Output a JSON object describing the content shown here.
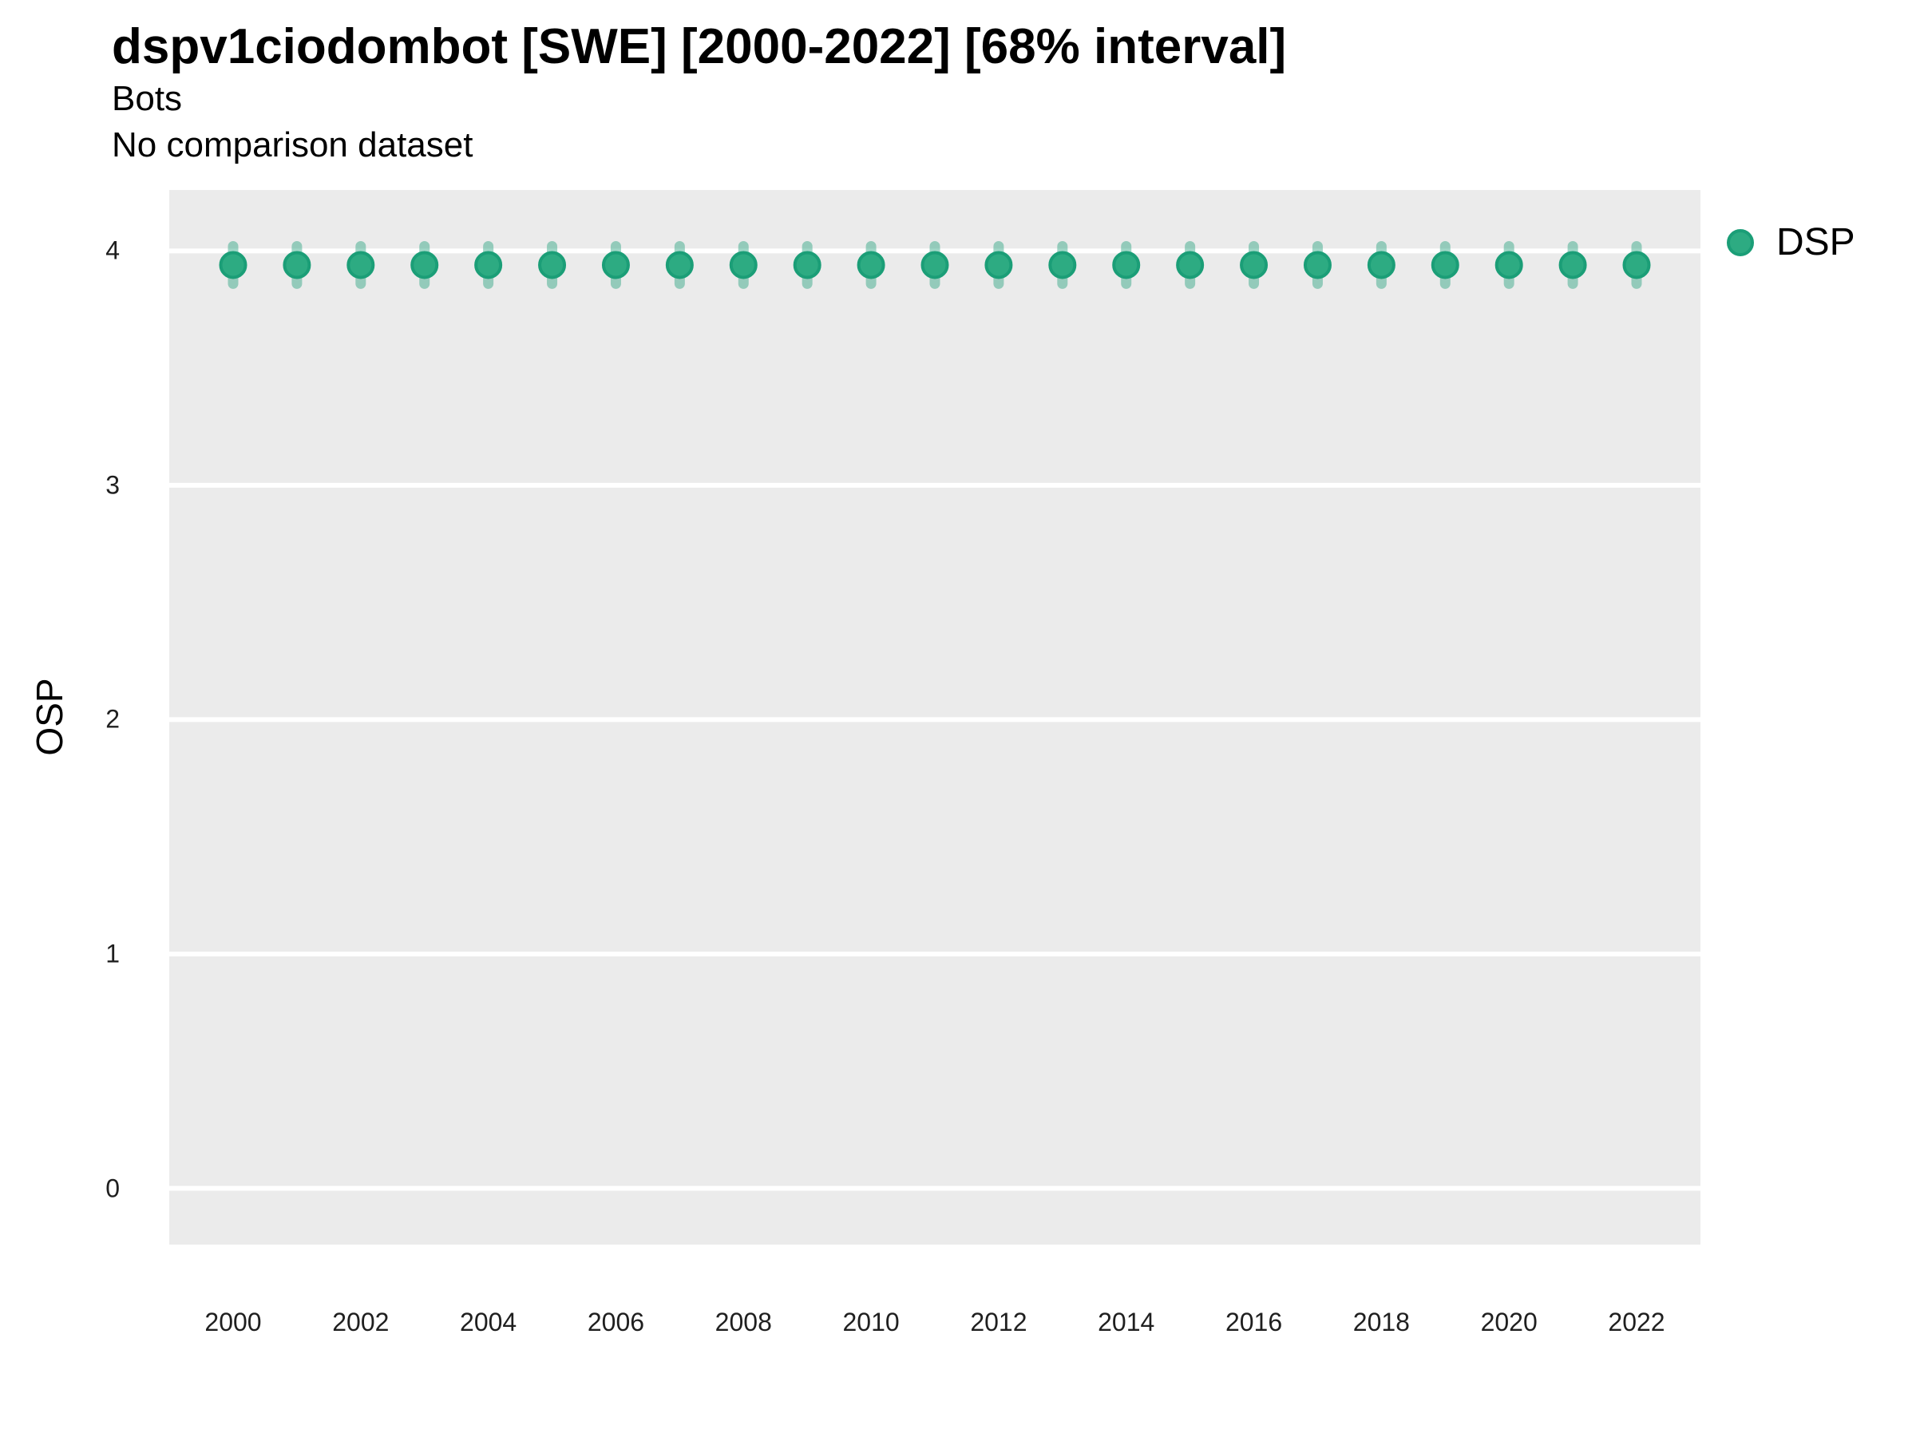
{
  "header": {
    "title": "dspv1ciodombot [SWE] [2000-2022] [68% interval]",
    "subtitle": "Bots",
    "comparison_note": "No comparison dataset"
  },
  "legend": {
    "items": [
      {
        "label": "DSP",
        "fill": "#2dab82",
        "stroke": "#1b9e77"
      }
    ]
  },
  "axes": {
    "y_label": "OSP",
    "y_ticks": [
      4,
      3,
      2,
      1,
      0
    ],
    "x_ticks": [
      2000,
      2002,
      2004,
      2006,
      2008,
      2010,
      2012,
      2014,
      2016,
      2018,
      2020,
      2022
    ]
  },
  "chart_data": {
    "type": "scatter",
    "title": "dspv1ciodombot [SWE] [2000-2022] [68% interval]",
    "subtitle": "Bots",
    "note": "No comparison dataset",
    "xlabel": "",
    "ylabel": "OSP",
    "x": [
      2000,
      2001,
      2002,
      2003,
      2004,
      2005,
      2006,
      2007,
      2008,
      2009,
      2010,
      2011,
      2012,
      2013,
      2014,
      2015,
      2016,
      2017,
      2018,
      2019,
      2020,
      2021,
      2022
    ],
    "series": [
      {
        "name": "DSP",
        "values": [
          3.94,
          3.94,
          3.94,
          3.94,
          3.94,
          3.94,
          3.94,
          3.94,
          3.94,
          3.94,
          3.94,
          3.94,
          3.94,
          3.94,
          3.94,
          3.94,
          3.94,
          3.94,
          3.94,
          3.94,
          3.94,
          3.94,
          3.94
        ],
        "interval_low": [
          3.86,
          3.86,
          3.86,
          3.86,
          3.86,
          3.86,
          3.86,
          3.86,
          3.86,
          3.86,
          3.86,
          3.86,
          3.86,
          3.86,
          3.86,
          3.86,
          3.86,
          3.86,
          3.86,
          3.86,
          3.86,
          3.86,
          3.86
        ],
        "interval_high": [
          4.02,
          4.02,
          4.02,
          4.02,
          4.02,
          4.02,
          4.02,
          4.02,
          4.02,
          4.02,
          4.02,
          4.02,
          4.02,
          4.02,
          4.02,
          4.02,
          4.02,
          4.02,
          4.02,
          4.02,
          4.02,
          4.02,
          4.02
        ]
      }
    ],
    "interval_label": "68% interval",
    "ylim": [
      -0.24,
      4.26
    ],
    "yticks": [
      0,
      1,
      2,
      3,
      4
    ],
    "xticks": [
      2000,
      2002,
      2004,
      2006,
      2008,
      2010,
      2012,
      2014,
      2016,
      2018,
      2020,
      2022
    ],
    "grid": "horizontal-major-only",
    "legend_position": "right",
    "colors": {
      "point_fill": "#2dab82",
      "point_stroke": "#1b9e77",
      "errorbar": "rgba(27, 158, 119, 0.42)",
      "panel_bg": "#ebebeb",
      "gridline": "#ffffff",
      "tick_text": "#1f1f1f"
    }
  }
}
